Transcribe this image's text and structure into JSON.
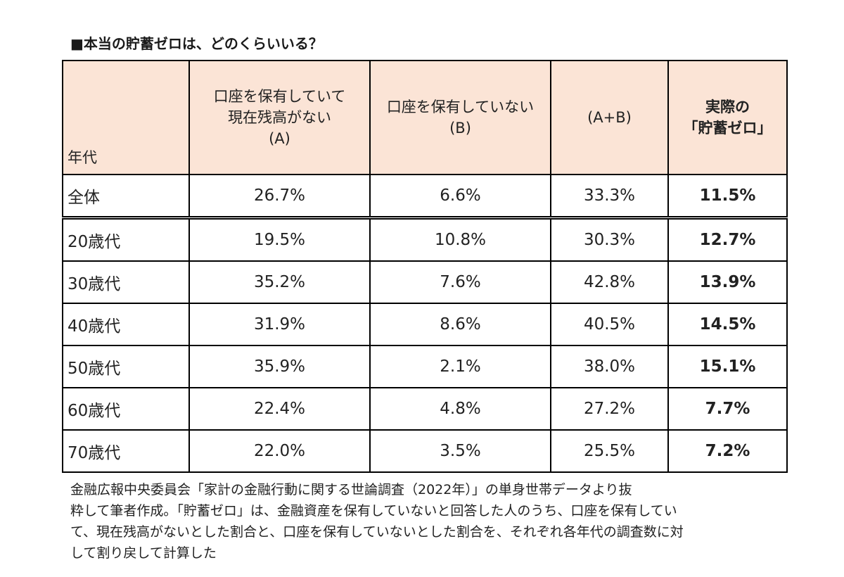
{
  "title": "■本当の貯蓄ゼロは、どのくらいいる？",
  "table": {
    "headers": {
      "age": "年代",
      "a_line1": "口座を保有していて",
      "a_line2": "現在残高がない",
      "a_line3": "(A)",
      "b_line1": "口座を保有していない",
      "b_line2": "(B)",
      "ab": "(A+B)",
      "real_line1": "実際の",
      "real_line2": "「貯蓄ゼロ」"
    },
    "rows": [
      {
        "age": "全体",
        "a": "26.7%",
        "b": "6.6%",
        "ab": "33.3%",
        "real": "11.5%"
      },
      {
        "age": "20歳代",
        "a": "19.5%",
        "b": "10.8%",
        "ab": "30.3%",
        "real": "12.7%"
      },
      {
        "age": "30歳代",
        "a": "35.2%",
        "b": "7.6%",
        "ab": "42.8%",
        "real": "13.9%"
      },
      {
        "age": "40歳代",
        "a": "31.9%",
        "b": "8.6%",
        "ab": "40.5%",
        "real": "14.5%"
      },
      {
        "age": "50歳代",
        "a": "35.9%",
        "b": "2.1%",
        "ab": "38.0%",
        "real": "15.1%"
      },
      {
        "age": "60歳代",
        "a": "22.4%",
        "b": "4.8%",
        "ab": "27.2%",
        "real": "7.7%"
      },
      {
        "age": "70歳代",
        "a": "22.0%",
        "b": "3.5%",
        "ab": "25.5%",
        "real": "7.2%"
      }
    ]
  },
  "note": [
    "金融広報中央委員会「家計の金融行動に関する世論調査（2022年）」の単身世帯データより抜",
    "粋して筆者作成。「貯蓄ゼロ」は、金融資産を保有していないと回答した人のうち、口座を保有してい",
    "て、現在残高がないとした割合と、口座を保有していないとした割合を、それぞれ各年代の調査数に対",
    "して割り戻して計算した"
  ],
  "colors": {
    "header_bg": "#fbe4d6",
    "border": "#000000",
    "text": "#222222"
  }
}
